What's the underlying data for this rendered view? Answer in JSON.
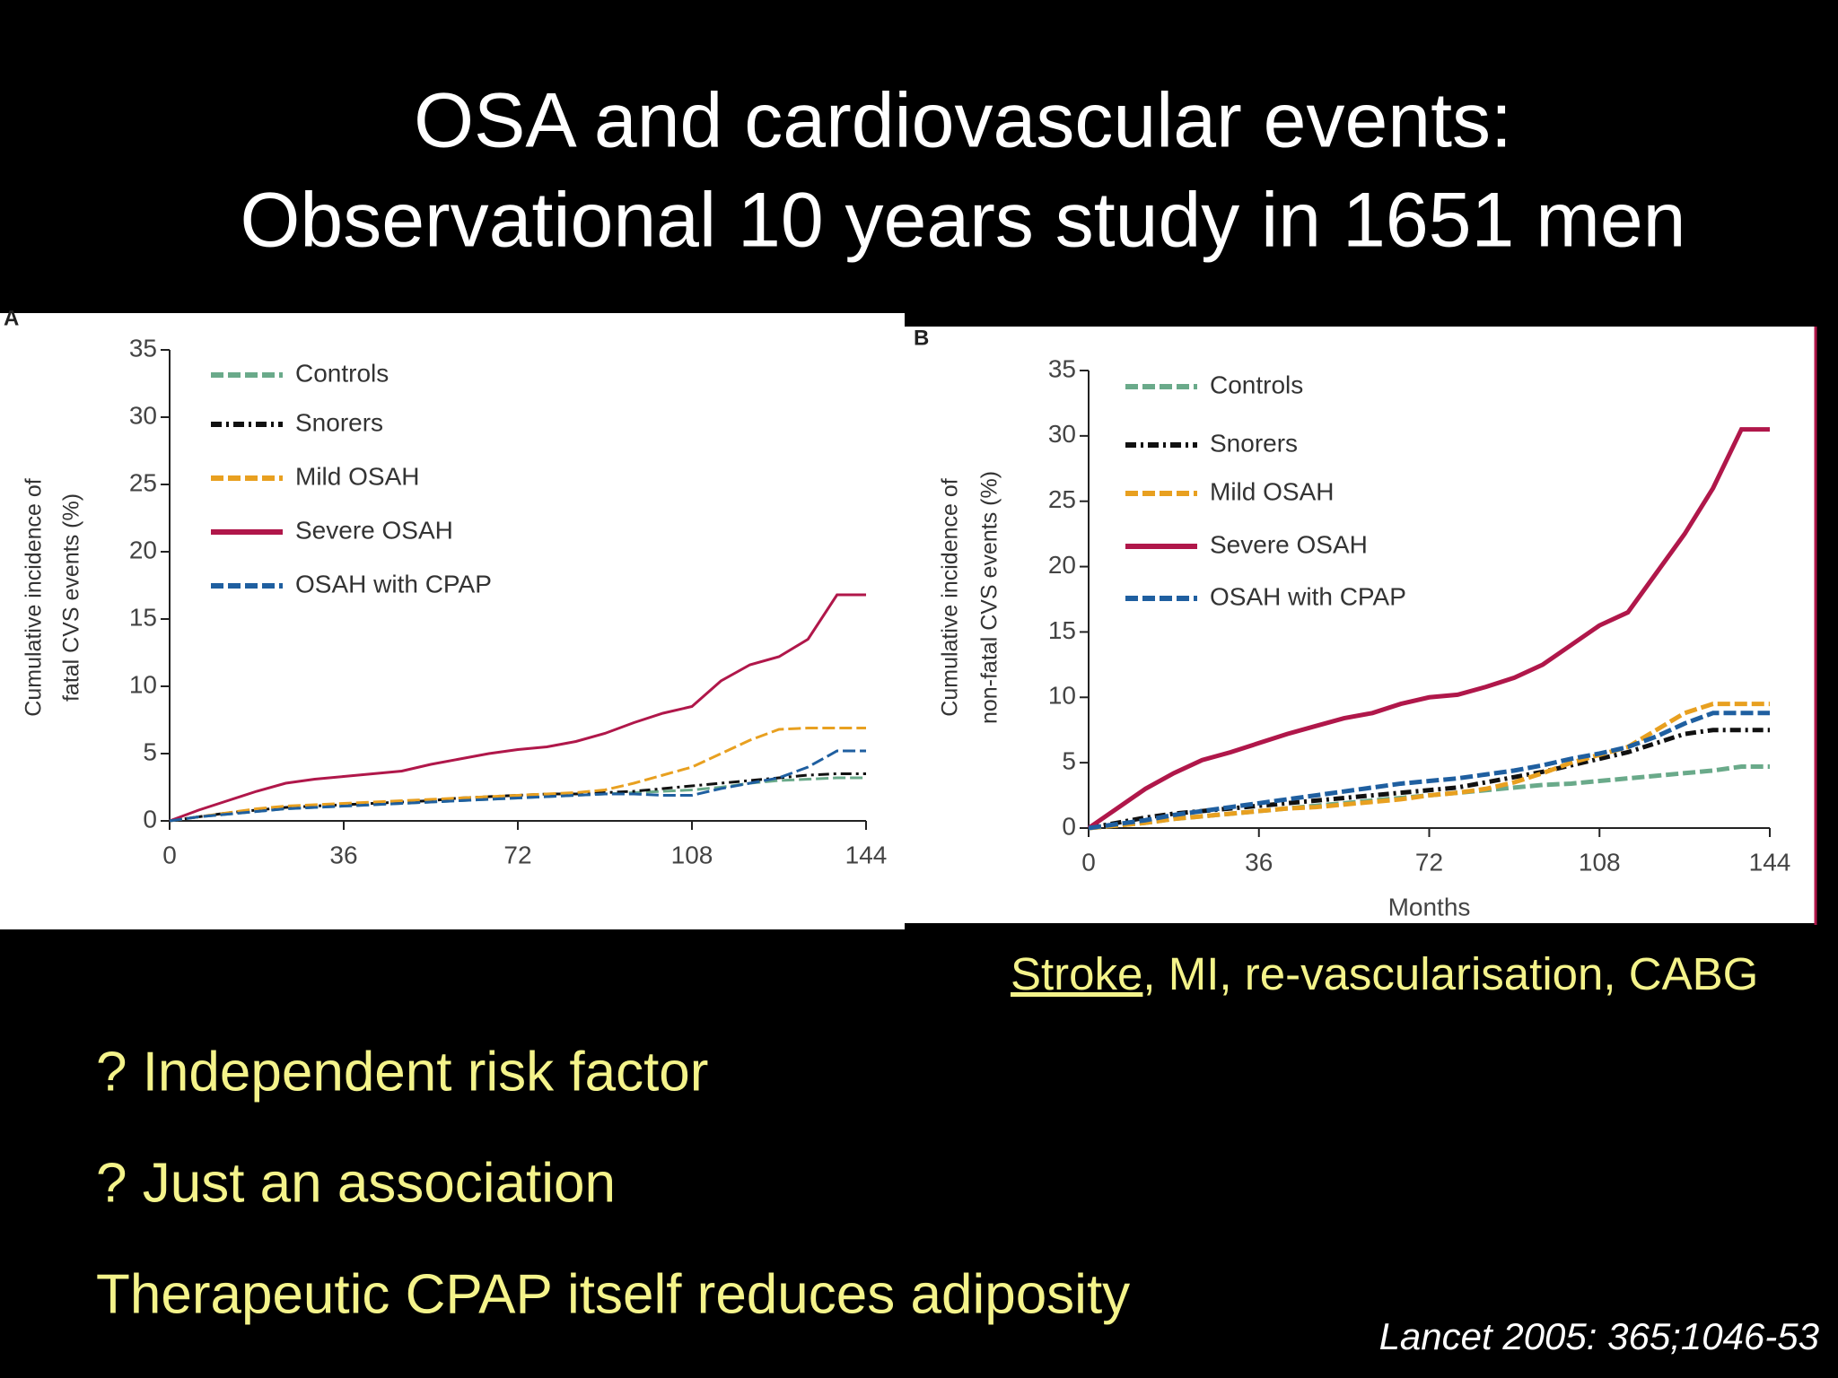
{
  "slide": {
    "title": [
      "OSA and cardiovascular events:",
      "Observational 10 years study in 1651 men"
    ],
    "events_note": {
      "underlined": "Stroke",
      "rest": ", MI, re-vascularisation, CABG"
    },
    "bullets": [
      "? Independent risk factor",
      "? Just an association",
      "Therapeutic CPAP itself reduces adiposity"
    ],
    "citation": "Lancet 2005: 365;1046-53"
  },
  "chart_data": [
    {
      "type": "line",
      "panel_label": "A",
      "y_label": [
        "Cumulative incidence of",
        "fatal CVS events (%)"
      ],
      "x": [
        0,
        6,
        12,
        18,
        24,
        30,
        36,
        42,
        48,
        54,
        60,
        66,
        72,
        78,
        84,
        90,
        96,
        102,
        108,
        114,
        120,
        126,
        132,
        138,
        144
      ],
      "xlim": [
        0,
        144
      ],
      "ylim": [
        0,
        35
      ],
      "xticks": [
        0,
        36,
        72,
        108,
        144
      ],
      "yticks": [
        0,
        5,
        10,
        15,
        20,
        25,
        30,
        35
      ],
      "series": [
        {
          "name": "Controls",
          "color": "#6aaa8a",
          "dash": "dashed",
          "values": [
            0,
            0.3,
            0.5,
            0.7,
            0.9,
            1.0,
            1.1,
            1.2,
            1.3,
            1.4,
            1.5,
            1.6,
            1.7,
            1.8,
            1.9,
            2.0,
            2.1,
            2.2,
            2.3,
            2.5,
            2.8,
            3.0,
            3.1,
            3.2,
            3.2
          ]
        },
        {
          "name": "Snorers",
          "color": "#111111",
          "dash": "dashdot",
          "values": [
            0,
            0.3,
            0.6,
            0.8,
            1.0,
            1.1,
            1.2,
            1.3,
            1.4,
            1.5,
            1.7,
            1.8,
            1.9,
            2.0,
            2.0,
            2.1,
            2.2,
            2.4,
            2.6,
            2.8,
            3.0,
            3.2,
            3.4,
            3.5,
            3.5
          ]
        },
        {
          "name": "Mild OSAH",
          "color": "#e8a020",
          "dash": "dashed",
          "values": [
            0,
            0.3,
            0.6,
            0.9,
            1.1,
            1.2,
            1.3,
            1.4,
            1.5,
            1.6,
            1.7,
            1.8,
            1.9,
            2.0,
            2.1,
            2.3,
            2.8,
            3.4,
            4.0,
            5.0,
            6.0,
            6.8,
            6.9,
            6.9,
            6.9
          ]
        },
        {
          "name": "Severe OSAH",
          "color": "#b0174a",
          "dash": "solid",
          "values": [
            0,
            0.8,
            1.5,
            2.2,
            2.8,
            3.1,
            3.3,
            3.5,
            3.7,
            4.2,
            4.6,
            5.0,
            5.3,
            5.5,
            5.9,
            6.5,
            7.3,
            8.0,
            8.5,
            10.4,
            11.6,
            12.2,
            13.5,
            16.8,
            16.8
          ]
        },
        {
          "name": "OSAH with CPAP",
          "color": "#1f5fa0",
          "dash": "dashed",
          "values": [
            0,
            0.3,
            0.5,
            0.7,
            0.9,
            1.0,
            1.1,
            1.2,
            1.3,
            1.4,
            1.5,
            1.6,
            1.7,
            1.8,
            1.9,
            2.0,
            2.0,
            1.9,
            1.9,
            2.4,
            2.8,
            3.2,
            4.0,
            5.2,
            5.2
          ]
        }
      ]
    },
    {
      "type": "line",
      "panel_label": "B",
      "y_label": [
        "Cumulative incidence of",
        "non-fatal CVS events (%)"
      ],
      "x_label": "Months",
      "x": [
        0,
        6,
        12,
        18,
        24,
        30,
        36,
        42,
        48,
        54,
        60,
        66,
        72,
        78,
        84,
        90,
        96,
        102,
        108,
        114,
        120,
        126,
        132,
        138,
        144
      ],
      "xlim": [
        0,
        144
      ],
      "ylim": [
        0,
        35
      ],
      "xticks": [
        0,
        36,
        72,
        108,
        144
      ],
      "yticks": [
        0,
        5,
        10,
        15,
        20,
        25,
        30,
        35
      ],
      "series": [
        {
          "name": "Controls",
          "color": "#6aaa8a",
          "dash": "dashed",
          "values": [
            0,
            0.2,
            0.4,
            0.7,
            0.9,
            1.1,
            1.3,
            1.5,
            1.7,
            1.9,
            2.1,
            2.3,
            2.5,
            2.7,
            2.9,
            3.1,
            3.3,
            3.4,
            3.6,
            3.8,
            4.0,
            4.2,
            4.4,
            4.7,
            4.7
          ]
        },
        {
          "name": "Snorers",
          "color": "#111111",
          "dash": "dashdot",
          "values": [
            0,
            0.4,
            0.8,
            1.1,
            1.3,
            1.5,
            1.7,
            1.9,
            2.1,
            2.3,
            2.5,
            2.7,
            2.9,
            3.1,
            3.5,
            3.9,
            4.3,
            4.8,
            5.3,
            5.8,
            6.5,
            7.2,
            7.5,
            7.5,
            7.5
          ]
        },
        {
          "name": "Mild OSAH",
          "color": "#e8a020",
          "dash": "dashed",
          "values": [
            0,
            0.2,
            0.4,
            0.7,
            0.9,
            1.1,
            1.3,
            1.5,
            1.6,
            1.8,
            2.0,
            2.2,
            2.5,
            2.7,
            3.0,
            3.5,
            4.2,
            5.0,
            5.6,
            6.2,
            7.5,
            8.8,
            9.5,
            9.5,
            9.5
          ]
        },
        {
          "name": "Severe OSAH",
          "color": "#b0174a",
          "dash": "solid",
          "values": [
            0,
            1.5,
            3.0,
            4.2,
            5.2,
            5.8,
            6.5,
            7.2,
            7.8,
            8.4,
            8.8,
            9.5,
            10.0,
            10.2,
            10.8,
            11.5,
            12.5,
            14.0,
            15.5,
            16.5,
            19.5,
            22.5,
            26.0,
            30.5,
            30.5
          ]
        },
        {
          "name": "OSAH with CPAP",
          "color": "#1f5fa0",
          "dash": "dashed",
          "values": [
            0,
            0.3,
            0.6,
            1.0,
            1.3,
            1.6,
            1.9,
            2.2,
            2.5,
            2.8,
            3.1,
            3.4,
            3.6,
            3.8,
            4.1,
            4.4,
            4.8,
            5.3,
            5.7,
            6.2,
            7.0,
            8.0,
            8.8,
            8.8,
            8.8
          ]
        }
      ]
    }
  ]
}
